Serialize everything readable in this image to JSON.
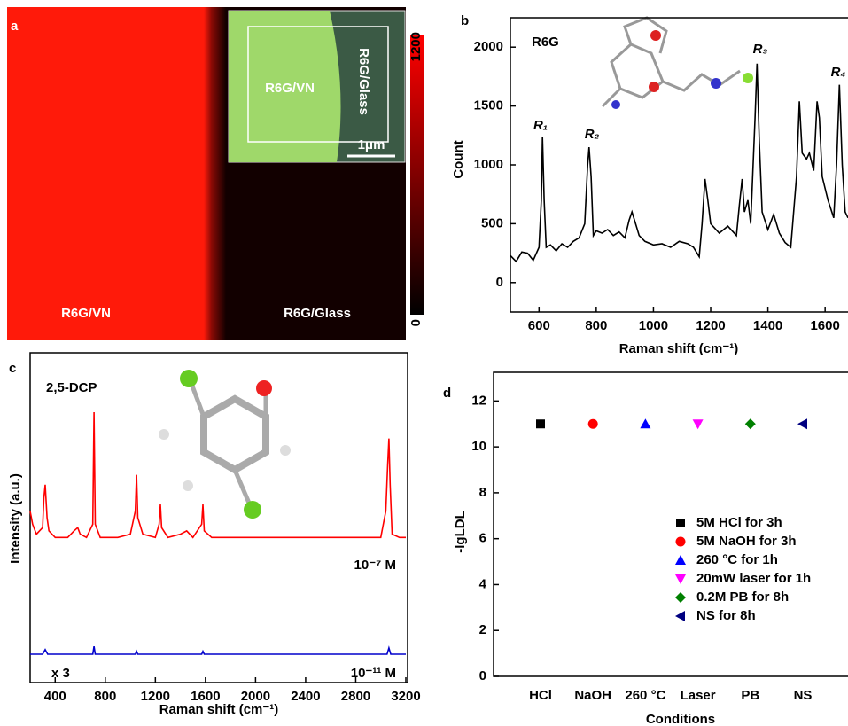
{
  "image_panel": {
    "label": "a",
    "left_text": "R6G/VN",
    "right_text": "R6G/Glass",
    "inset_left": "R6G/VN",
    "inset_right": "R6G/Glass",
    "scale_bar": "1μm",
    "colorbar_max": "1200",
    "colorbar_min": "0"
  },
  "chart_data": [
    {
      "type": "line",
      "panel_label": "b",
      "annotation": "R6G",
      "peak_labels": [
        "R₁",
        "R₂",
        "R₃",
        "R₄"
      ],
      "x_label": "Raman shift (cm⁻¹)",
      "y_label": "Count",
      "xlim": [
        500,
        1680
      ],
      "xticks": [
        600,
        800,
        1000,
        1200,
        1400,
        1600
      ],
      "ylim": [
        -250,
        2250
      ],
      "yticks": [
        0,
        500,
        1000,
        1500,
        2000
      ],
      "x": [
        500,
        520,
        540,
        560,
        580,
        600,
        608,
        612,
        618,
        625,
        640,
        660,
        680,
        700,
        720,
        740,
        760,
        770,
        775,
        782,
        790,
        800,
        820,
        840,
        860,
        880,
        900,
        915,
        925,
        935,
        950,
        970,
        1000,
        1030,
        1060,
        1090,
        1120,
        1140,
        1160,
        1170,
        1180,
        1190,
        1200,
        1230,
        1260,
        1290,
        1300,
        1310,
        1318,
        1330,
        1340,
        1355,
        1362,
        1370,
        1380,
        1400,
        1420,
        1440,
        1460,
        1480,
        1500,
        1510,
        1520,
        1535,
        1545,
        1560,
        1572,
        1580,
        1590,
        1610,
        1630,
        1640,
        1650,
        1660,
        1670,
        1680
      ],
      "series": [
        {
          "color": "#000000",
          "values": [
            230,
            180,
            260,
            250,
            190,
            300,
            700,
            1240,
            700,
            300,
            320,
            270,
            330,
            300,
            350,
            380,
            500,
            1000,
            1150,
            900,
            400,
            440,
            420,
            450,
            400,
            430,
            380,
            530,
            600,
            520,
            400,
            350,
            320,
            330,
            300,
            350,
            330,
            300,
            220,
            500,
            880,
            700,
            500,
            420,
            480,
            400,
            650,
            880,
            600,
            700,
            500,
            1400,
            1860,
            1200,
            600,
            450,
            580,
            420,
            340,
            300,
            900,
            1540,
            1100,
            1050,
            1100,
            950,
            1540,
            1400,
            900,
            700,
            550,
            1000,
            1680,
            1000,
            600,
            550
          ]
        }
      ]
    },
    {
      "type": "line",
      "panel_label": "c",
      "annotation": "2,5-DCP",
      "x_label": "Raman shift (cm⁻¹)",
      "y_label": "Intensity (a.u.)",
      "xlim": [
        200,
        3200
      ],
      "xticks": [
        400,
        800,
        1200,
        1600,
        2000,
        2400,
        2800,
        3200
      ],
      "ylim": [
        0,
        100
      ],
      "series": [
        {
          "name": "10⁻⁷ M",
          "color": "#ff0000",
          "x": [
            200,
            220,
            250,
            300,
            310,
            320,
            335,
            350,
            400,
            500,
            550,
            580,
            600,
            650,
            700,
            710,
            720,
            760,
            900,
            1000,
            1040,
            1050,
            1060,
            1100,
            1200,
            1230,
            1240,
            1250,
            1300,
            1400,
            1450,
            1500,
            1570,
            1580,
            1590,
            1650,
            2000,
            2400,
            2800,
            3000,
            3040,
            3055,
            3065,
            3075,
            3090,
            3150,
            3200
          ],
          "values": [
            52,
            48,
            45,
            47,
            56,
            60,
            50,
            46,
            44,
            44,
            46,
            47,
            45,
            44,
            48,
            82,
            48,
            44,
            44,
            45,
            52,
            63,
            50,
            45,
            44,
            48,
            54,
            47,
            44,
            45,
            46,
            44,
            48,
            54,
            46,
            44,
            44,
            44,
            44,
            44,
            52,
            66,
            74,
            60,
            45,
            44,
            44
          ]
        },
        {
          "name": "10⁻¹¹ M",
          "multiplier": "x 3",
          "color": "#0000cc",
          "x": [
            200,
            300,
            320,
            340,
            700,
            710,
            720,
            1040,
            1050,
            1060,
            1570,
            1580,
            1590,
            3050,
            3065,
            3080,
            3200
          ],
          "values": [
            8.6,
            8.6,
            10,
            8.6,
            8.6,
            11,
            8.6,
            8.6,
            9.5,
            8.6,
            8.6,
            9.5,
            8.6,
            8.6,
            10.5,
            8.6,
            8.6
          ]
        }
      ]
    },
    {
      "type": "scatter",
      "panel_label": "d",
      "x_label": "Conditions",
      "y_label": "-lgLDL",
      "categories": [
        "HCl",
        "NaOH",
        "260 °C",
        "Laser",
        "PB",
        "NS"
      ],
      "ylim": [
        0,
        13.25
      ],
      "yticks": [
        0,
        2,
        4,
        6,
        8,
        10,
        12
      ],
      "series": [
        {
          "name": "5M HCl for 3h",
          "color": "#000000",
          "marker": "square",
          "values": [
            11,
            null,
            null,
            null,
            null,
            null
          ]
        },
        {
          "name": "5M NaOH for 3h",
          "color": "#ff0000",
          "marker": "circle",
          "values": [
            null,
            11,
            null,
            null,
            null,
            null
          ]
        },
        {
          "name": "260 °C for 1h",
          "color": "#0000ff",
          "marker": "triangle-up",
          "values": [
            null,
            null,
            11,
            null,
            null,
            null
          ]
        },
        {
          "name": "20mW laser for 1h",
          "color": "#ff00ff",
          "marker": "triangle-down",
          "values": [
            null,
            null,
            null,
            11,
            null,
            null
          ]
        },
        {
          "name": "0.2M PB for 8h",
          "color": "#008000",
          "marker": "diamond",
          "values": [
            null,
            null,
            null,
            null,
            11,
            null
          ]
        },
        {
          "name": "NS for 8h",
          "color": "#000080",
          "marker": "triangle-left",
          "values": [
            null,
            null,
            null,
            null,
            null,
            11
          ]
        }
      ]
    }
  ]
}
